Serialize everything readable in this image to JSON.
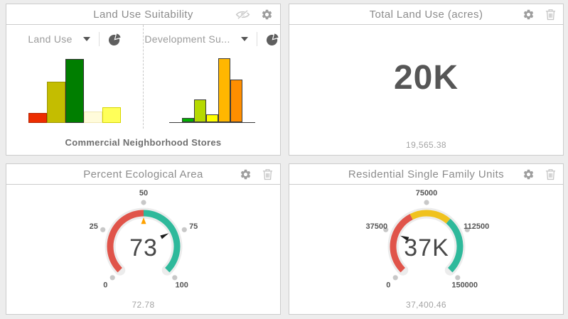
{
  "page": {
    "background": "#ededed"
  },
  "panels": {
    "land_use": {
      "title": "Land Use Suitability",
      "header_icons": [
        "visibility-off-icon",
        "gear-icon"
      ],
      "caption": "Commercial Neighborhood Stores",
      "chart_left": {
        "type": "bar",
        "selector_label": "Land Use",
        "selector_icon": "pie-chart-icon",
        "categories": [
          "bar1",
          "bar2",
          "bar3",
          "bar4",
          "bar5"
        ],
        "values": [
          16,
          64,
          100,
          18,
          24
        ],
        "value_unit": "relative-height-percent",
        "colors": [
          "#ed2d00",
          "#c4bd00",
          "#007e00",
          "#fffbdb",
          "#ffff59"
        ],
        "border_colors": [
          "#b22200",
          "#9a9400",
          "#2e2e2e",
          "#f0e7b4",
          "#d6d600"
        ],
        "axis_line": false
      },
      "chart_right": {
        "type": "bar",
        "selector_label": "Development Su...",
        "selector_icon": "pie-chart-icon",
        "categories": [
          "bar1",
          "bar2",
          "bar3",
          "bar4",
          "bar5"
        ],
        "values": [
          7,
          36,
          12,
          100,
          67
        ],
        "value_unit": "relative-height-percent",
        "colors": [
          "#00b000",
          "#b5d900",
          "#ffff00",
          "#ffb700",
          "#ff8e00"
        ],
        "border_colors": [
          "#3c3c3c",
          "#3c3c3c",
          "#3c3c3c",
          "#3c3c3c",
          "#3c3c3c"
        ],
        "axis_line": true
      }
    },
    "total_land_use": {
      "title": "Total Land Use (acres)",
      "header_icons": [
        "gear-icon",
        "trash-icon"
      ],
      "value_display": "20K",
      "value_exact": "19,565.38"
    },
    "percent_ecological": {
      "title": "Percent Ecological Area",
      "header_icons": [
        "gear-icon",
        "trash-icon"
      ],
      "value_display": "73",
      "value_exact": "72.78",
      "gauge": {
        "type": "gauge",
        "min": 0,
        "max": 100,
        "value": 73,
        "target": 50,
        "tick_values": [
          0,
          25,
          50,
          75,
          100
        ],
        "tick_labels": [
          "0",
          "25",
          "50",
          "75",
          "100"
        ],
        "segments": [
          {
            "from": 0,
            "to": 50,
            "color": "#e0544a"
          },
          {
            "from": 50,
            "to": 100,
            "color": "#2eb99b"
          }
        ],
        "target_color": "#ffa200",
        "needle_color": "#1c1c1c",
        "track_color": "#ececec",
        "tick_dot_color": "#c8c8c8",
        "tick_label_color": "#555555",
        "value_color": "#484848"
      }
    },
    "residential": {
      "title": "Residential Single Family Units",
      "header_icons": [
        "gear-icon",
        "trash-icon"
      ],
      "value_display": "37K",
      "value_exact": "37,400.46",
      "gauge": {
        "type": "gauge",
        "min": 0,
        "max": 150000,
        "value": 37400.46,
        "tick_values": [
          0,
          37500,
          75000,
          112500,
          150000
        ],
        "tick_labels": [
          "0",
          "37500",
          "75000",
          "112500",
          "150000"
        ],
        "segments": [
          {
            "from": 0,
            "to": 60000,
            "color": "#e0544a"
          },
          {
            "from": 60000,
            "to": 97500,
            "color": "#f0c21e"
          },
          {
            "from": 97500,
            "to": 150000,
            "color": "#2eb99b"
          }
        ],
        "needle_color": "#1c1c1c",
        "track_color": "#ececec",
        "tick_dot_color": "#c8c8c8",
        "tick_label_color": "#555555",
        "value_color": "#484848"
      }
    }
  }
}
